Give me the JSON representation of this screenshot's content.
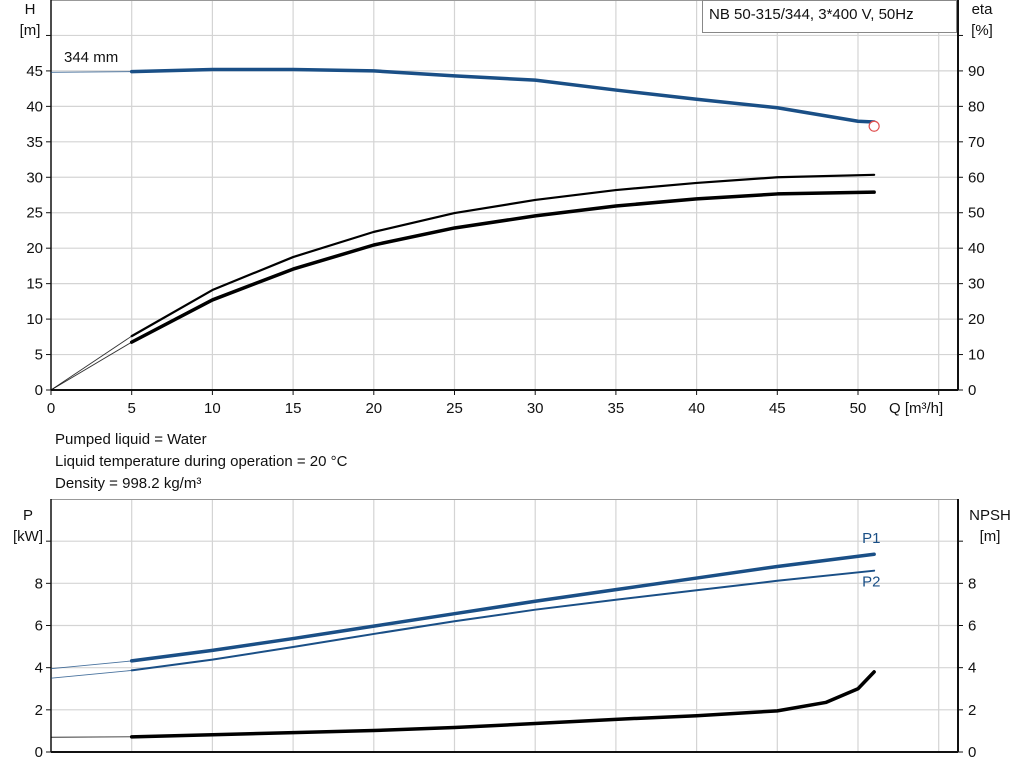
{
  "chart_data": [
    {
      "type": "line",
      "title": "NB 50-315/344, 3*400 V, 50Hz",
      "xlabel": "Q [m³/h]",
      "ylabel": "H\n[m]",
      "ylabel_right": "eta\n[%]",
      "xlim": [
        0,
        55
      ],
      "ylim": [
        0,
        55
      ],
      "ylim_right": [
        0,
        110
      ],
      "x_ticks": [
        0,
        5,
        10,
        15,
        20,
        25,
        30,
        35,
        40,
        45,
        50
      ],
      "y_ticks": [
        0,
        5,
        10,
        15,
        20,
        25,
        30,
        35,
        40,
        45
      ],
      "y_ticks_right": [
        0,
        10,
        20,
        30,
        40,
        50,
        60,
        70,
        80,
        90
      ],
      "grid": true,
      "annotation": "344 mm",
      "series": [
        {
          "axis": "left",
          "color": "#1a4f86",
          "x": [
            0,
            5,
            10,
            15,
            20,
            25,
            30,
            35,
            40,
            45,
            50,
            51
          ],
          "y": [
            44.8,
            44.9,
            45.2,
            45.2,
            45.0,
            44.3,
            43.7,
            42.3,
            41.0,
            39.8,
            37.9,
            37.8
          ]
        },
        {
          "axis": "right",
          "color": "#000000",
          "x": [
            0,
            5,
            10,
            15,
            20,
            25,
            30,
            35,
            40,
            45,
            51
          ],
          "y": [
            0,
            15.2,
            28.2,
            37.5,
            44.6,
            49.9,
            53.6,
            56.4,
            58.4,
            60.0,
            60.7
          ]
        },
        {
          "axis": "right",
          "color": "#000000",
          "x": [
            0,
            5,
            10,
            15,
            20,
            25,
            30,
            35,
            40,
            45,
            51
          ],
          "y": [
            0,
            13.5,
            25.4,
            34.1,
            40.9,
            45.7,
            49.1,
            51.9,
            53.9,
            55.3,
            55.8
          ]
        }
      ],
      "marker": {
        "x": 51,
        "y": 37.2,
        "color": "#e05050"
      }
    },
    {
      "type": "line",
      "ylabel": "P\n[kW]",
      "ylabel_right": "NPSH\n[m]",
      "xlim": [
        0,
        55
      ],
      "ylim": [
        0,
        12
      ],
      "ylim_right": [
        0,
        12
      ],
      "y_ticks": [
        0,
        2,
        4,
        6,
        8
      ],
      "y_ticks_right": [
        0,
        2,
        4,
        6,
        8
      ],
      "grid": true,
      "series": [
        {
          "name": "P1",
          "axis": "left",
          "color": "#1a4f86",
          "x": [
            0,
            5,
            10,
            15,
            20,
            25,
            30,
            35,
            40,
            45,
            51
          ],
          "y": [
            3.95,
            4.32,
            4.82,
            5.38,
            5.97,
            6.56,
            7.15,
            7.7,
            8.25,
            8.8,
            9.38
          ]
        },
        {
          "name": "P2",
          "axis": "left",
          "color": "#1a4f86",
          "x": [
            0,
            5,
            10,
            15,
            20,
            25,
            30,
            35,
            40,
            45,
            51
          ],
          "y": [
            3.5,
            3.87,
            4.38,
            4.98,
            5.6,
            6.2,
            6.75,
            7.22,
            7.67,
            8.12,
            8.6
          ]
        },
        {
          "axis": "right",
          "color": "#000000",
          "x": [
            0,
            5,
            10,
            15,
            20,
            25,
            30,
            35,
            40,
            45,
            48,
            50,
            51
          ],
          "y": [
            0.7,
            0.72,
            0.82,
            0.92,
            1.02,
            1.16,
            1.35,
            1.55,
            1.72,
            1.95,
            2.35,
            3.0,
            3.8
          ]
        }
      ]
    }
  ],
  "fluid_info": [
    "Pumped liquid = Water",
    "Liquid temperature during operation = 20 °C",
    "Density = 998.2 kg/m³"
  ]
}
